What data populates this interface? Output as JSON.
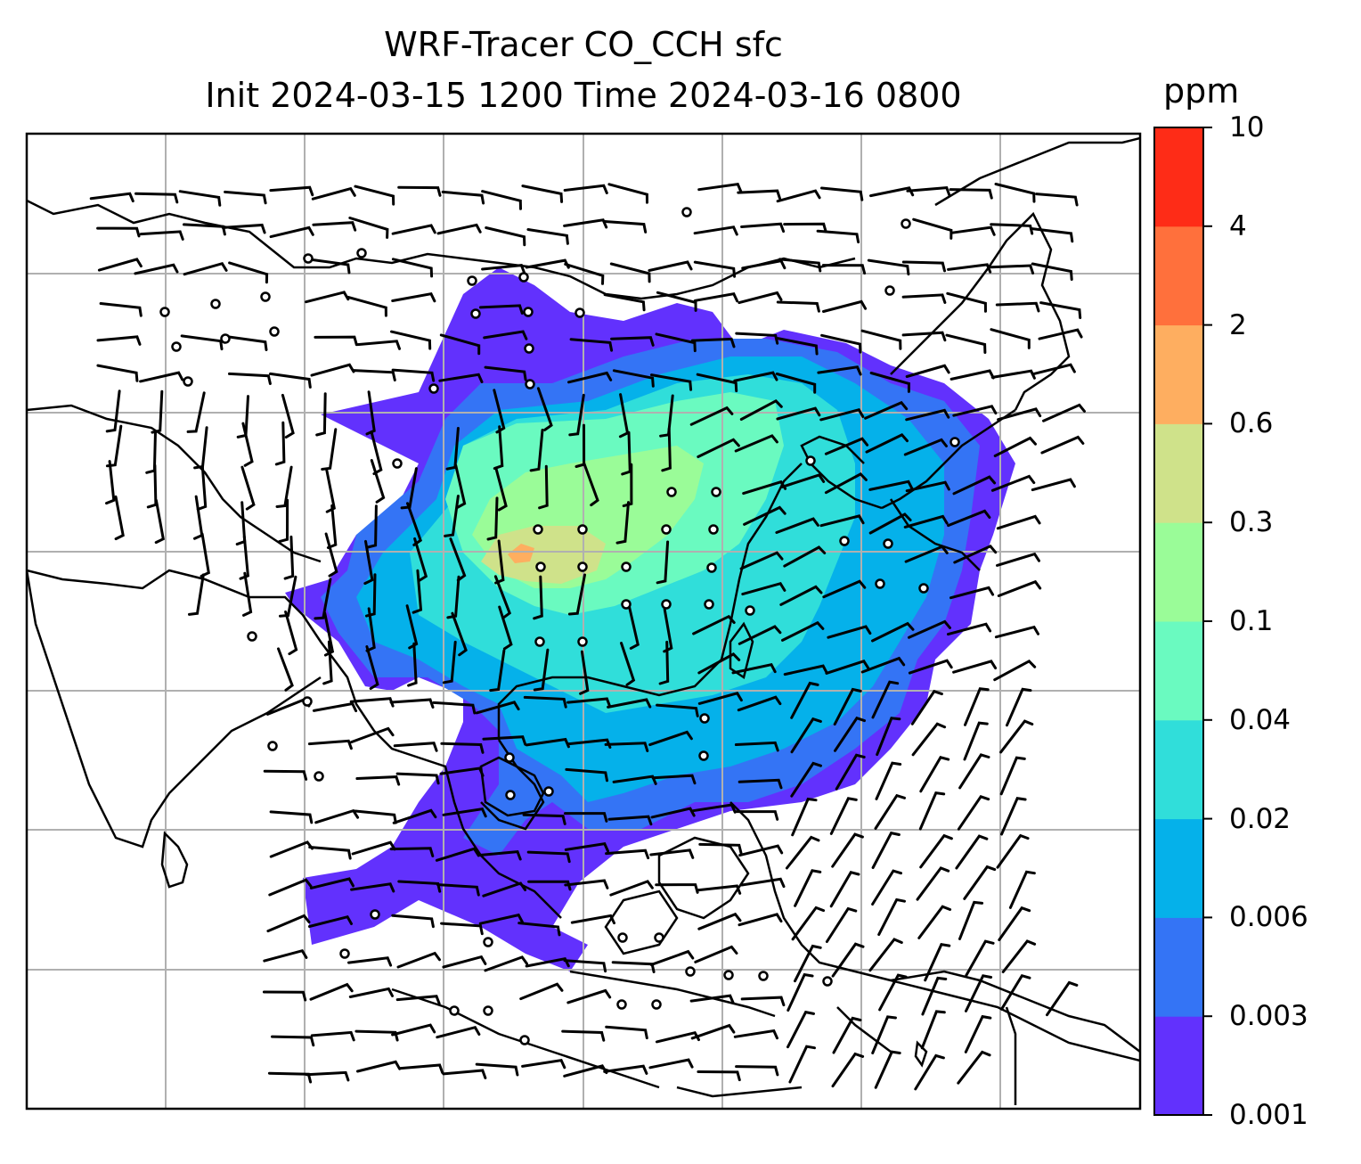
{
  "title": {
    "line1": "WRF-Tracer CO_CCH sfc",
    "line2": "Init 2024-03-15 1200 Time 2024-03-16 0800"
  },
  "colorbar": {
    "unit": "ppm",
    "levels": [
      "0.001",
      "0.003",
      "0.006",
      "0.02",
      "0.04",
      "0.1",
      "0.3",
      "0.6",
      "2",
      "4",
      "10"
    ],
    "colors": [
      "#6231fd",
      "#3474f5",
      "#05b1ea",
      "#30deda",
      "#6afac0",
      "#9afc98",
      "#cfe28a",
      "#feae60",
      "#ff703c",
      "#fe2c17"
    ]
  },
  "map": {
    "gridlines": "on",
    "gridline_color": "#b0b0b0",
    "coastline_color": "#000000",
    "wind_barbs": "on"
  }
}
